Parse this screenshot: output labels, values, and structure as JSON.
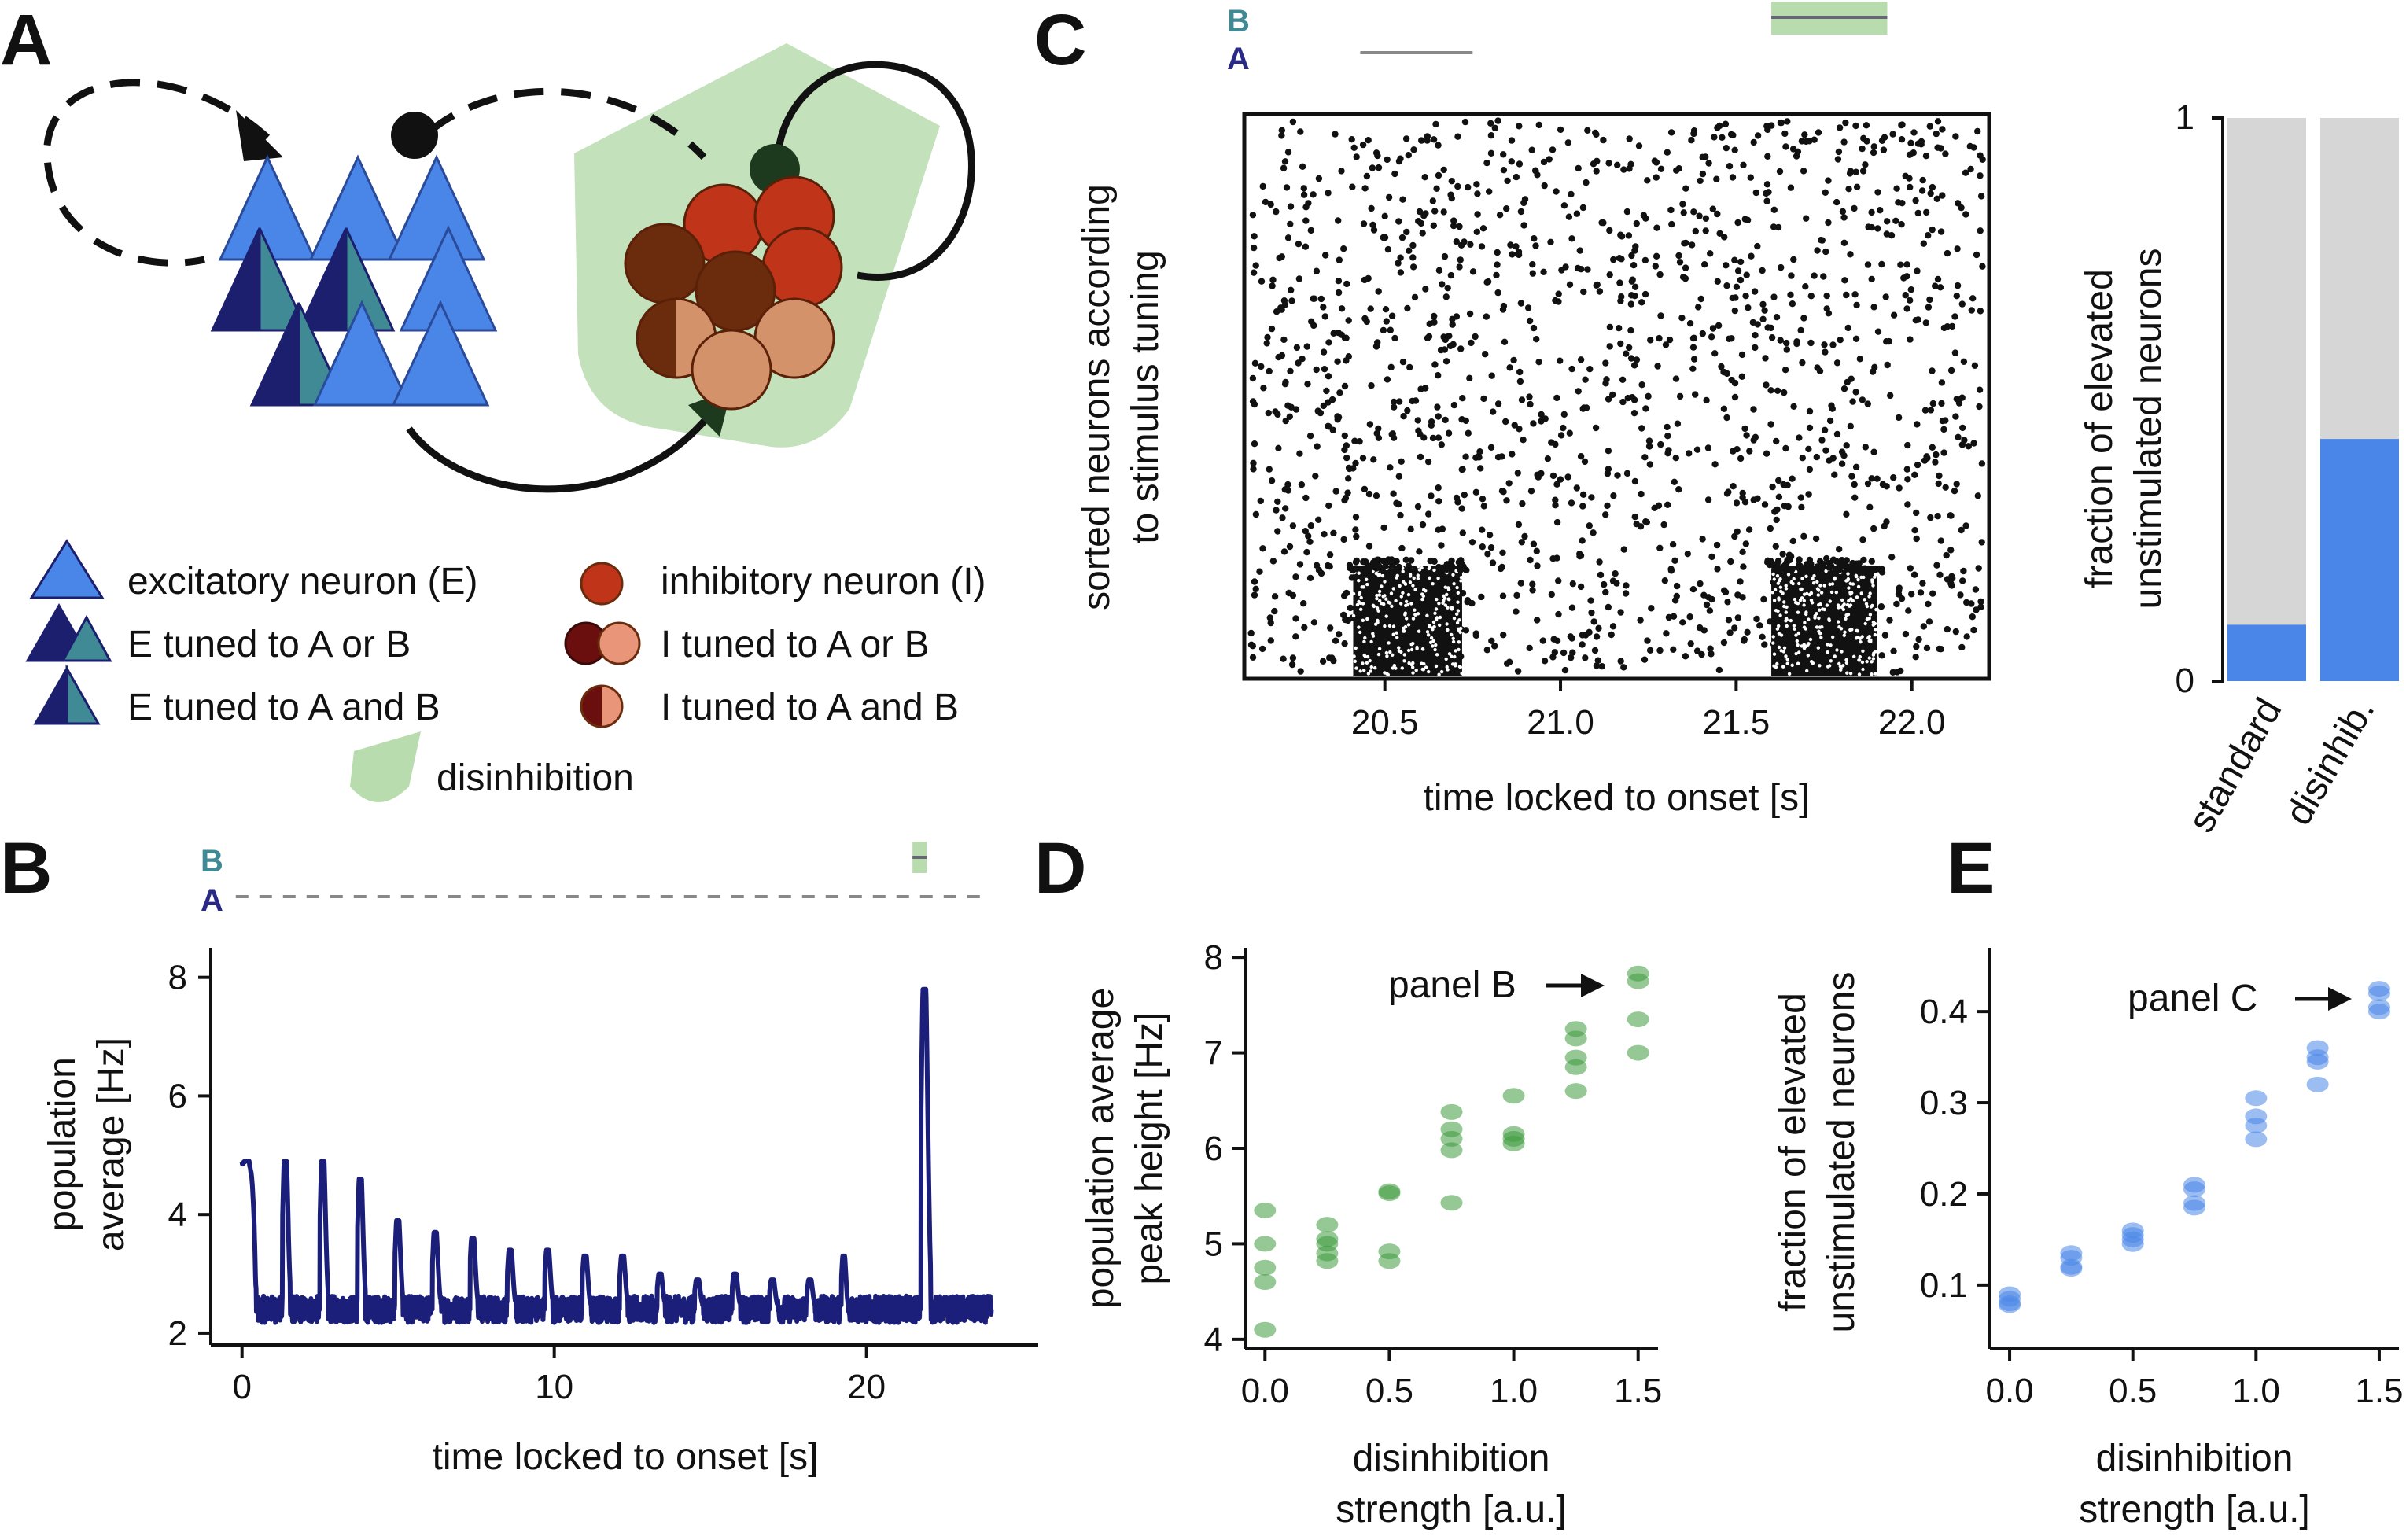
{
  "colors": {
    "e_light": "#4a86e8",
    "e_dark": "#1c1f6e",
    "e_teal": "#3f8a94",
    "i_red": "#c0341a",
    "i_dark": "#6b2c0e",
    "i_light": "#d4926a",
    "disinhibition": "#b9dcae",
    "trace": "#1c1f7a",
    "green_dots": "#3e9a3e",
    "blue_dots": "#4a86e8",
    "bar_grey": "#d6d6d6",
    "bar_blue": "#4a86e8",
    "label_a": "#2a2a86",
    "label_b": "#3f8a94"
  },
  "panels": {
    "a": "A",
    "b": "B",
    "c": "C",
    "d": "D",
    "e": "E"
  },
  "stimulus_labels": {
    "a": "A",
    "b": "B"
  },
  "legend": {
    "exc": "excitatory neuron (E)",
    "e_ab_or": "E tuned to A or B",
    "e_ab_and": "E tuned to A and B",
    "inh": "inhibitory neuron (I)",
    "i_ab_or": "I tuned to A or B",
    "i_ab_and": "I tuned to A and B",
    "disinhibition": "disinhibition"
  },
  "chart_data": [
    {
      "panel": "B",
      "type": "line",
      "xlabel": "time locked to onset [s]",
      "ylabel_lines": [
        "population",
        "average [Hz]"
      ],
      "xlim": [
        -1,
        25.5
      ],
      "ylim": [
        1.8,
        8.5
      ],
      "xticks": [
        0,
        10,
        20
      ],
      "yticks": [
        2,
        4,
        6,
        8
      ],
      "stimulus_b_time": 21.7,
      "stimulus_a_times": [
        0,
        1.2,
        2.4,
        3.6,
        4.8,
        6.0,
        7.2,
        8.4,
        9.6,
        10.8,
        12.0,
        13.2,
        14.4,
        15.6,
        16.8,
        18.0,
        19.2,
        20.4,
        21.6,
        22.8
      ],
      "peaks": [
        {
          "t": 0.0,
          "h": 4.9,
          "w": 0.45
        },
        {
          "t": 1.3,
          "h": 4.9,
          "w": 0.25
        },
        {
          "t": 2.5,
          "h": 4.9,
          "w": 0.25
        },
        {
          "t": 3.7,
          "h": 4.6,
          "w": 0.25
        },
        {
          "t": 4.9,
          "h": 3.9,
          "w": 0.25
        },
        {
          "t": 6.1,
          "h": 3.7,
          "w": 0.25
        },
        {
          "t": 7.3,
          "h": 3.6,
          "w": 0.25
        },
        {
          "t": 8.5,
          "h": 3.4,
          "w": 0.25
        },
        {
          "t": 9.7,
          "h": 3.4,
          "w": 0.25
        },
        {
          "t": 10.9,
          "h": 3.3,
          "w": 0.25
        },
        {
          "t": 12.1,
          "h": 3.3,
          "w": 0.25
        },
        {
          "t": 13.3,
          "h": 3.0,
          "w": 0.25
        },
        {
          "t": 14.5,
          "h": 2.9,
          "w": 0.25
        },
        {
          "t": 15.7,
          "h": 3.0,
          "w": 0.25
        },
        {
          "t": 16.9,
          "h": 2.9,
          "w": 0.25
        },
        {
          "t": 18.1,
          "h": 2.9,
          "w": 0.25
        },
        {
          "t": 19.2,
          "h": 3.3,
          "w": 0.2
        },
        {
          "t": 21.75,
          "h": 7.8,
          "w": 0.3
        }
      ],
      "baseline": 2.4,
      "t_end": 24.0
    },
    {
      "panel": "C",
      "type": "scatter",
      "subtype": "raster",
      "xlabel": "time locked to onset [s]",
      "ylabel_lines": [
        "sorted neurons according",
        "to stimulus tuning"
      ],
      "xlim": [
        20.1,
        22.22
      ],
      "xticks": [
        20.5,
        21.0,
        21.5,
        22.0
      ],
      "xtick_labels": [
        "20.5",
        "21.0",
        "21.5",
        "22.0"
      ],
      "stimulus_a_window": [
        20.43,
        20.75
      ],
      "stimulus_b_window": [
        21.6,
        21.93
      ],
      "dense_blocks": [
        {
          "t0": 20.41,
          "t1": 20.72,
          "rows": [
            0,
            0.2
          ]
        },
        {
          "t0": 21.6,
          "t1": 21.9,
          "rows": [
            0,
            0.2
          ]
        }
      ]
    },
    {
      "panel": "C-bar",
      "type": "bar",
      "ylabel_lines": [
        "fraction of elevated",
        "unstimulated neurons"
      ],
      "categories": [
        "standard",
        "disinhib."
      ],
      "values": [
        0.1,
        0.43
      ],
      "ylim": [
        0,
        1
      ],
      "yticks": [
        0,
        1
      ]
    },
    {
      "panel": "D",
      "type": "scatter",
      "xlabel_lines": [
        "disinhibition",
        "strength [a.u.]"
      ],
      "ylabel_lines": [
        "population average",
        "peak height [Hz]"
      ],
      "xlim": [
        -0.08,
        1.58
      ],
      "ylim": [
        3.9,
        8.1
      ],
      "xticks": [
        0.0,
        0.5,
        1.0,
        1.5
      ],
      "xtick_labels": [
        "0.0",
        "0.5",
        "1.0",
        "1.5"
      ],
      "yticks": [
        4,
        5,
        6,
        7,
        8
      ],
      "annotation": "panel B",
      "points": [
        [
          0.0,
          5.35
        ],
        [
          0.0,
          5.0
        ],
        [
          0.0,
          4.75
        ],
        [
          0.0,
          4.6
        ],
        [
          0.0,
          4.1
        ],
        [
          0.25,
          5.2
        ],
        [
          0.25,
          5.05
        ],
        [
          0.25,
          5.0
        ],
        [
          0.25,
          4.9
        ],
        [
          0.25,
          4.82
        ],
        [
          0.5,
          5.55
        ],
        [
          0.5,
          5.53
        ],
        [
          0.5,
          4.92
        ],
        [
          0.5,
          4.82
        ],
        [
          0.75,
          6.38
        ],
        [
          0.75,
          6.2
        ],
        [
          0.75,
          6.1
        ],
        [
          0.75,
          5.98
        ],
        [
          0.75,
          5.43
        ],
        [
          1.0,
          6.55
        ],
        [
          1.0,
          6.15
        ],
        [
          1.0,
          6.1
        ],
        [
          1.0,
          6.05
        ],
        [
          1.25,
          7.25
        ],
        [
          1.25,
          7.15
        ],
        [
          1.25,
          6.95
        ],
        [
          1.25,
          6.85
        ],
        [
          1.25,
          6.6
        ],
        [
          1.5,
          7.83
        ],
        [
          1.5,
          7.75
        ],
        [
          1.5,
          7.35
        ],
        [
          1.5,
          7.0
        ]
      ]
    },
    {
      "panel": "E",
      "type": "scatter",
      "xlabel_lines": [
        "disinhibition",
        "strength [a.u.]"
      ],
      "ylabel_lines": [
        "fraction of elevated",
        "unstimulated neurons"
      ],
      "xlim": [
        -0.08,
        1.58
      ],
      "ylim": [
        0.03,
        0.47
      ],
      "xticks": [
        0.0,
        0.5,
        1.0,
        1.5
      ],
      "xtick_labels": [
        "0.0",
        "0.5",
        "1.0",
        "1.5"
      ],
      "yticks": [
        0.1,
        0.2,
        0.3,
        0.4
      ],
      "ytick_labels": [
        "0.1",
        "0.2",
        "0.3",
        "0.4"
      ],
      "annotation": "panel C",
      "points": [
        [
          0.0,
          0.09
        ],
        [
          0.0,
          0.085
        ],
        [
          0.0,
          0.08
        ],
        [
          0.0,
          0.078
        ],
        [
          0.25,
          0.135
        ],
        [
          0.25,
          0.13
        ],
        [
          0.25,
          0.12
        ],
        [
          0.25,
          0.118
        ],
        [
          0.5,
          0.16
        ],
        [
          0.5,
          0.155
        ],
        [
          0.5,
          0.15
        ],
        [
          0.5,
          0.145
        ],
        [
          0.75,
          0.21
        ],
        [
          0.75,
          0.205
        ],
        [
          0.75,
          0.19
        ],
        [
          0.75,
          0.185
        ],
        [
          1.0,
          0.305
        ],
        [
          1.0,
          0.285
        ],
        [
          1.0,
          0.275
        ],
        [
          1.0,
          0.26
        ],
        [
          1.25,
          0.36
        ],
        [
          1.25,
          0.35
        ],
        [
          1.25,
          0.345
        ],
        [
          1.25,
          0.32
        ],
        [
          1.5,
          0.425
        ],
        [
          1.5,
          0.42
        ],
        [
          1.5,
          0.405
        ],
        [
          1.5,
          0.4
        ]
      ]
    }
  ]
}
